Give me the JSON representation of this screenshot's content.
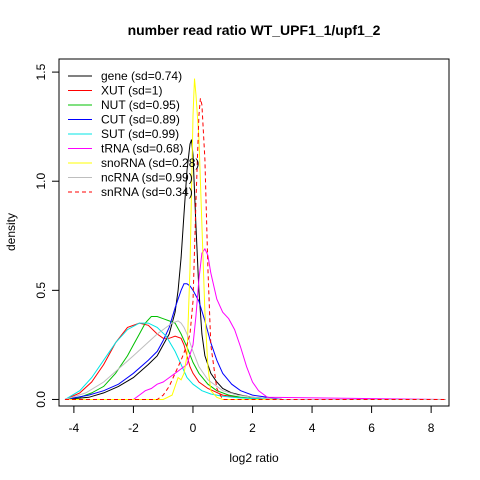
{
  "chart_data": {
    "type": "line",
    "title": "number read ratio WT_UPF1_1/upf1_2",
    "xlabel": "log2 ratio",
    "ylabel": "density",
    "xlim": [
      -4.5,
      8.6
    ],
    "ylim": [
      -0.03,
      1.56
    ],
    "xticks": [
      "-4",
      "-2",
      "0",
      "2",
      "4",
      "6",
      "8"
    ],
    "yticks": [
      "0.0",
      "0.5",
      "1.0",
      "1.5"
    ],
    "grid": false,
    "legend_position": "top-left",
    "series": [
      {
        "name": "gene (sd=0.74)",
        "color": "#000000",
        "dash": false,
        "x": [
          -4.3,
          -3.5,
          -3.0,
          -2.5,
          -2.0,
          -1.5,
          -1.2,
          -1.0,
          -0.8,
          -0.6,
          -0.5,
          -0.4,
          -0.3,
          -0.2,
          -0.1,
          -0.05,
          0.0,
          0.1,
          0.2,
          0.3,
          0.4,
          0.6,
          0.8,
          1.0,
          1.3,
          1.6,
          2.0,
          3.0,
          8.5
        ],
        "y": [
          0.0,
          0.01,
          0.03,
          0.06,
          0.1,
          0.16,
          0.2,
          0.25,
          0.3,
          0.4,
          0.5,
          0.65,
          0.85,
          1.05,
          1.17,
          1.19,
          1.12,
          0.8,
          0.5,
          0.3,
          0.2,
          0.12,
          0.08,
          0.05,
          0.03,
          0.02,
          0.01,
          0.0,
          0.0
        ]
      },
      {
        "name": "XUT (sd=1)",
        "color": "#ff0000",
        "dash": false,
        "x": [
          -4.3,
          -3.8,
          -3.4,
          -3.0,
          -2.6,
          -2.2,
          -1.8,
          -1.5,
          -1.2,
          -1.0,
          -0.8,
          -0.6,
          -0.4,
          -0.3,
          -0.2,
          -0.1,
          0.0,
          0.2,
          0.5,
          1.0,
          1.5,
          2.0,
          3.0,
          8.5
        ],
        "y": [
          0.0,
          0.03,
          0.08,
          0.16,
          0.26,
          0.33,
          0.35,
          0.34,
          0.3,
          0.28,
          0.28,
          0.29,
          0.28,
          0.25,
          0.2,
          0.15,
          0.12,
          0.08,
          0.05,
          0.02,
          0.01,
          0.005,
          0.0,
          0.0
        ]
      },
      {
        "name": "NUT (sd=0.95)",
        "color": "#00c000",
        "dash": false,
        "x": [
          -4.3,
          -3.8,
          -3.4,
          -3.0,
          -2.6,
          -2.2,
          -2.0,
          -1.8,
          -1.6,
          -1.4,
          -1.2,
          -1.0,
          -0.8,
          -0.6,
          -0.4,
          -0.2,
          0.0,
          0.2,
          0.5,
          0.8,
          1.2,
          1.6,
          2.0,
          3.0,
          8.5
        ],
        "y": [
          0.0,
          0.01,
          0.03,
          0.06,
          0.12,
          0.2,
          0.25,
          0.3,
          0.35,
          0.38,
          0.38,
          0.37,
          0.36,
          0.35,
          0.3,
          0.24,
          0.17,
          0.12,
          0.07,
          0.04,
          0.02,
          0.01,
          0.005,
          0.0,
          0.0
        ]
      },
      {
        "name": "CUT (sd=0.89)",
        "color": "#0000ff",
        "dash": false,
        "x": [
          -4.3,
          -3.5,
          -3.0,
          -2.5,
          -2.0,
          -1.5,
          -1.2,
          -1.0,
          -0.8,
          -0.6,
          -0.4,
          -0.3,
          -0.2,
          -0.1,
          0.0,
          0.2,
          0.4,
          0.6,
          0.8,
          1.0,
          1.3,
          1.6,
          2.0,
          2.5,
          3.0,
          8.5
        ],
        "y": [
          0.0,
          0.02,
          0.04,
          0.07,
          0.12,
          0.18,
          0.22,
          0.27,
          0.33,
          0.42,
          0.5,
          0.53,
          0.53,
          0.52,
          0.5,
          0.45,
          0.36,
          0.26,
          0.18,
          0.12,
          0.07,
          0.04,
          0.02,
          0.01,
          0.0,
          0.0
        ]
      },
      {
        "name": "SUT (sd=0.99)",
        "color": "#00e5e5",
        "dash": false,
        "x": [
          -4.3,
          -3.8,
          -3.4,
          -3.0,
          -2.6,
          -2.2,
          -1.8,
          -1.5,
          -1.2,
          -0.9,
          -0.6,
          -0.4,
          -0.2,
          0.0,
          0.3,
          0.6,
          1.0,
          1.5,
          2.0,
          3.0,
          8.5
        ],
        "y": [
          0.0,
          0.04,
          0.1,
          0.18,
          0.26,
          0.32,
          0.35,
          0.35,
          0.33,
          0.29,
          0.22,
          0.16,
          0.1,
          0.07,
          0.04,
          0.025,
          0.015,
          0.008,
          0.004,
          0.0,
          0.0
        ]
      },
      {
        "name": "tRNA (sd=0.68)",
        "color": "#ff00ff",
        "dash": false,
        "x": [
          -4.3,
          -2.0,
          -1.8,
          -1.6,
          -1.4,
          -1.2,
          -1.0,
          -0.8,
          -0.6,
          -0.4,
          -0.2,
          0.0,
          0.1,
          0.2,
          0.3,
          0.4,
          0.5,
          0.6,
          0.8,
          1.0,
          1.2,
          1.4,
          1.6,
          1.8,
          2.0,
          2.2,
          2.5,
          8.5
        ],
        "y": [
          0.0,
          0.0,
          0.02,
          0.04,
          0.05,
          0.07,
          0.08,
          0.1,
          0.12,
          0.14,
          0.16,
          0.25,
          0.38,
          0.55,
          0.67,
          0.69,
          0.66,
          0.58,
          0.46,
          0.4,
          0.37,
          0.32,
          0.24,
          0.15,
          0.08,
          0.04,
          0.01,
          0.0
        ]
      },
      {
        "name": "snoRNA (sd=0.28)",
        "color": "#ffff00",
        "dash": false,
        "x": [
          -4.3,
          -1.0,
          -0.7,
          -0.5,
          -0.4,
          -0.3,
          -0.2,
          -0.1,
          0.0,
          0.05,
          0.1,
          0.2,
          0.3,
          0.4,
          0.5,
          0.6,
          0.8,
          1.0,
          8.5
        ],
        "y": [
          0.0,
          0.0,
          0.02,
          0.1,
          0.09,
          0.12,
          0.2,
          0.6,
          1.3,
          1.47,
          1.4,
          1.2,
          0.8,
          0.4,
          0.15,
          0.04,
          0.01,
          0.0,
          0.0
        ]
      },
      {
        "name": "ncRNA (sd=0.99)",
        "color": "#bebebe",
        "dash": false,
        "x": [
          -4.3,
          -3.6,
          -3.0,
          -2.5,
          -2.0,
          -1.6,
          -1.2,
          -0.9,
          -0.7,
          -0.5,
          -0.4,
          -0.3,
          -0.2,
          0.0,
          0.2,
          0.5,
          1.0,
          1.5,
          2.0,
          3.0,
          8.5
        ],
        "y": [
          0.0,
          0.03,
          0.08,
          0.14,
          0.2,
          0.25,
          0.3,
          0.33,
          0.35,
          0.36,
          0.35,
          0.33,
          0.3,
          0.22,
          0.15,
          0.09,
          0.04,
          0.02,
          0.01,
          0.0,
          0.0
        ]
      },
      {
        "name": "snRNA (sd=0.34)",
        "color": "#ff0000",
        "dash": true,
        "x": [
          -4.3,
          -1.2,
          -1.0,
          -0.8,
          -0.6,
          -0.4,
          -0.2,
          -0.1,
          0.0,
          0.1,
          0.2,
          0.25,
          0.3,
          0.4,
          0.5,
          0.6,
          0.8,
          1.0,
          8.5
        ],
        "y": [
          0.0,
          0.0,
          0.02,
          0.06,
          0.12,
          0.18,
          0.25,
          0.3,
          0.45,
          0.9,
          1.3,
          1.38,
          1.35,
          1.1,
          0.6,
          0.25,
          0.05,
          0.0,
          0.0
        ]
      }
    ]
  }
}
